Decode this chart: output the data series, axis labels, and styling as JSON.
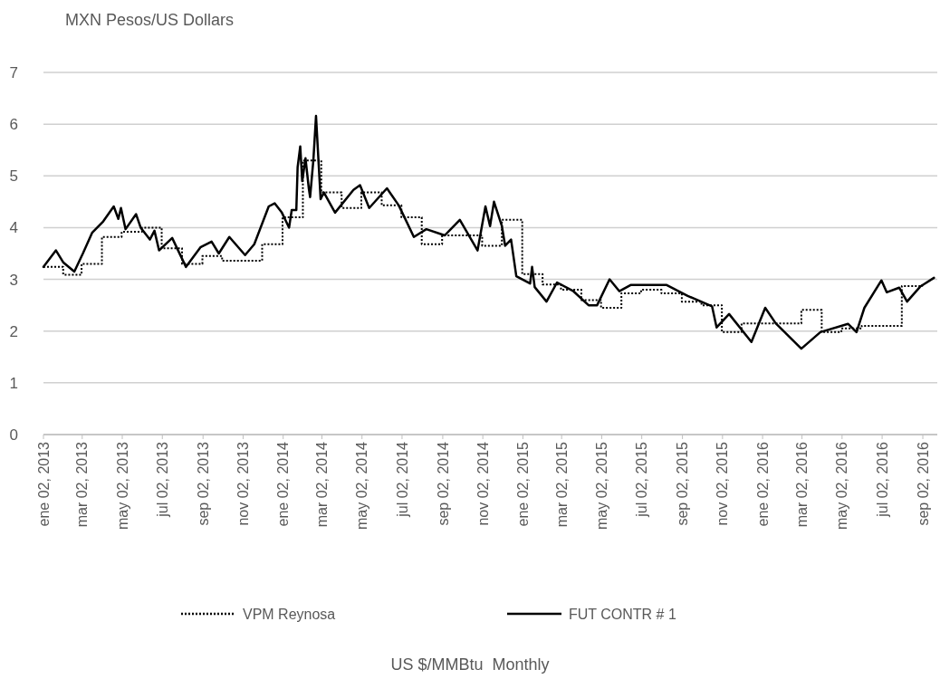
{
  "chart_data": {
    "type": "line",
    "title": "MXN Pesos/US Dollars",
    "annotations": [
      "US $/MMBtu  Monthly"
    ],
    "xlim": [
      "2013-01-02",
      "2016-09-24"
    ],
    "xticks": [
      {
        "value": "2013-01-02",
        "label": "ene 02, 2013"
      },
      {
        "value": "2013-03-02",
        "label": "mar 02, 2013"
      },
      {
        "value": "2013-05-02",
        "label": "may 02, 2013"
      },
      {
        "value": "2013-07-02",
        "label": "jul 02, 2013"
      },
      {
        "value": "2013-09-02",
        "label": "sep 02, 2013"
      },
      {
        "value": "2013-11-02",
        "label": "nov 02, 2013"
      },
      {
        "value": "2014-01-02",
        "label": "ene 02, 2014"
      },
      {
        "value": "2014-03-02",
        "label": "mar 02, 2014"
      },
      {
        "value": "2014-05-02",
        "label": "may 02, 2014"
      },
      {
        "value": "2014-07-02",
        "label": "jul 02, 2014"
      },
      {
        "value": "2014-09-02",
        "label": "sep 02, 2014"
      },
      {
        "value": "2014-11-02",
        "label": "nov 02, 2014"
      },
      {
        "value": "2015-01-02",
        "label": "ene 02, 2015"
      },
      {
        "value": "2015-03-02",
        "label": "mar 02, 2015"
      },
      {
        "value": "2015-05-02",
        "label": "may 02, 2015"
      },
      {
        "value": "2015-07-02",
        "label": "jul 02, 2015"
      },
      {
        "value": "2015-09-02",
        "label": "sep 02, 2015"
      },
      {
        "value": "2015-11-02",
        "label": "nov 02, 2015"
      },
      {
        "value": "2016-01-02",
        "label": "ene 02, 2016"
      },
      {
        "value": "2016-03-02",
        "label": "mar 02, 2016"
      },
      {
        "value": "2016-05-02",
        "label": "may 02, 2016"
      },
      {
        "value": "2016-07-02",
        "label": "jul 02, 2016"
      },
      {
        "value": "2016-09-02",
        "label": "sep 02, 2016"
      }
    ],
    "ylim": [
      0,
      7
    ],
    "yticks": [
      0,
      1,
      2,
      3,
      4,
      5,
      6,
      7
    ],
    "grid": "y",
    "legend": "bottom",
    "series": [
      {
        "name": "VPM Reynosa",
        "type": "step",
        "color": "#000000",
        "line_style": "dotted",
        "x": [
          "2013-01-02",
          "2013-02-01",
          "2013-03-01",
          "2013-04-01",
          "2013-05-01",
          "2013-06-01",
          "2013-07-01",
          "2013-08-01",
          "2013-09-01",
          "2013-10-01",
          "2013-11-01",
          "2013-12-01",
          "2014-01-01",
          "2014-02-01",
          "2014-03-01",
          "2014-04-01",
          "2014-05-01",
          "2014-06-01",
          "2014-07-01",
          "2014-08-01",
          "2014-09-01",
          "2014-10-01",
          "2014-11-01",
          "2014-12-01",
          "2015-01-01",
          "2015-02-01",
          "2015-03-01",
          "2015-04-01",
          "2015-05-01",
          "2015-06-01",
          "2015-07-01",
          "2015-08-01",
          "2015-09-01",
          "2015-10-01",
          "2015-11-01",
          "2015-12-01",
          "2016-01-01",
          "2016-02-01",
          "2016-03-01",
          "2016-04-01",
          "2016-05-01",
          "2016-06-01",
          "2016-07-01",
          "2016-08-01",
          "2016-09-01"
        ],
        "values": [
          3.24,
          3.09,
          3.3,
          3.82,
          3.92,
          4.0,
          3.6,
          3.3,
          3.45,
          3.36,
          3.36,
          3.68,
          4.2,
          5.3,
          4.68,
          4.38,
          4.68,
          4.43,
          4.2,
          3.68,
          3.85,
          3.85,
          3.65,
          4.15,
          3.1,
          2.9,
          2.8,
          2.6,
          2.45,
          2.73,
          2.8,
          2.73,
          2.57,
          2.5,
          1.98,
          2.15,
          2.15,
          2.15,
          2.41,
          1.98,
          2.05,
          2.1,
          2.1,
          2.87,
          2.9
        ]
      },
      {
        "name": "FUT CONTR # 1",
        "color": "#000000",
        "line_style": "solid",
        "x": [
          "2013-01-02",
          "2013-01-21",
          "2013-02-01",
          "2013-02-18",
          "2013-03-03",
          "2013-03-17",
          "2013-04-03",
          "2013-04-19",
          "2013-04-26",
          "2013-04-30",
          "2013-05-07",
          "2013-05-23",
          "2013-05-30",
          "2013-06-13",
          "2013-06-20",
          "2013-06-27",
          "2013-07-17",
          "2013-08-07",
          "2013-08-29",
          "2013-09-15",
          "2013-09-26",
          "2013-10-12",
          "2013-11-05",
          "2013-11-19",
          "2013-12-11",
          "2013-12-20",
          "2013-12-31",
          "2014-01-11",
          "2014-01-15",
          "2014-01-22",
          "2014-01-24",
          "2014-01-28",
          "2014-01-31",
          "2014-02-05",
          "2014-02-10",
          "2014-02-12",
          "2014-02-17",
          "2014-02-21",
          "2014-02-28",
          "2014-03-05",
          "2014-03-22",
          "2014-04-19",
          "2014-04-29",
          "2014-05-13",
          "2014-06-09",
          "2014-06-27",
          "2014-07-20",
          "2014-08-08",
          "2014-09-05",
          "2014-09-28",
          "2014-10-25",
          "2014-11-06",
          "2014-11-13",
          "2014-11-19",
          "2014-12-01",
          "2014-12-06",
          "2014-12-15",
          "2014-12-23",
          "2015-01-13",
          "2015-01-16",
          "2015-01-20",
          "2015-02-07",
          "2015-02-23",
          "2015-03-20",
          "2015-04-12",
          "2015-04-25",
          "2015-05-14",
          "2015-05-29",
          "2015-06-15",
          "2015-08-09",
          "2015-09-10",
          "2015-10-17",
          "2015-10-24",
          "2015-11-12",
          "2015-12-16",
          "2016-01-06",
          "2016-01-22",
          "2016-03-01",
          "2016-03-30",
          "2016-05-11",
          "2016-05-24",
          "2016-06-05",
          "2016-07-01",
          "2016-07-09",
          "2016-07-28",
          "2016-08-09",
          "2016-08-29",
          "2016-09-19"
        ],
        "values": [
          3.24,
          3.56,
          3.33,
          3.15,
          3.5,
          3.9,
          4.12,
          4.41,
          4.17,
          4.38,
          3.97,
          4.26,
          4.0,
          3.77,
          3.94,
          3.56,
          3.8,
          3.24,
          3.62,
          3.73,
          3.5,
          3.82,
          3.47,
          3.68,
          4.41,
          4.47,
          4.29,
          4.0,
          4.34,
          4.34,
          5.17,
          5.57,
          4.9,
          5.34,
          4.76,
          4.59,
          5.31,
          6.16,
          4.55,
          4.68,
          4.29,
          4.73,
          4.82,
          4.38,
          4.76,
          4.43,
          3.82,
          3.97,
          3.85,
          4.15,
          3.56,
          4.41,
          4.03,
          4.5,
          4.03,
          3.65,
          3.77,
          3.06,
          2.92,
          3.24,
          2.85,
          2.57,
          2.94,
          2.77,
          2.5,
          2.5,
          3.0,
          2.77,
          2.89,
          2.89,
          2.68,
          2.48,
          2.07,
          2.33,
          1.79,
          2.45,
          2.15,
          1.66,
          1.98,
          2.14,
          1.98,
          2.45,
          2.98,
          2.75,
          2.84,
          2.57,
          2.86,
          3.03
        ]
      }
    ]
  }
}
